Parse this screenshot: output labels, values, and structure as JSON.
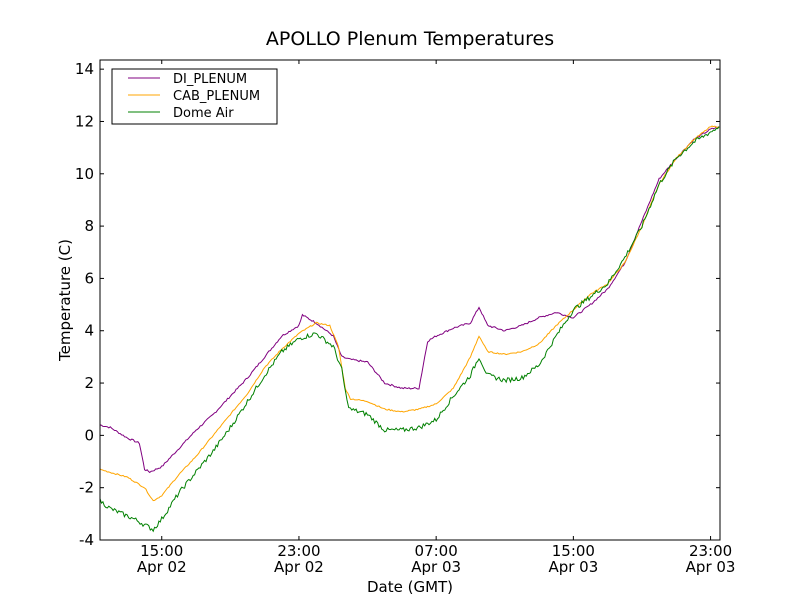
{
  "chart_data": {
    "type": "line",
    "title": "APOLLO Plenum Temperatures",
    "xlabel": "Date (GMT)",
    "ylabel": "Temperature (C)",
    "x_unit": "hours since Apr 02 00:00 GMT",
    "xlim": [
      11.4,
      47.55
    ],
    "ylim": [
      -4,
      14.35
    ],
    "yticks": [
      -4,
      -2,
      0,
      2,
      4,
      6,
      8,
      10,
      12,
      14
    ],
    "xticks": [
      {
        "value": 15,
        "time": "15:00",
        "date": "Apr 02"
      },
      {
        "value": 23,
        "time": "23:00",
        "date": "Apr 02"
      },
      {
        "value": 31,
        "time": "07:00",
        "date": "Apr 03"
      },
      {
        "value": 39,
        "time": "15:00",
        "date": "Apr 03"
      },
      {
        "value": 47,
        "time": "23:00",
        "date": "Apr 03"
      }
    ],
    "legend_position": "top-left",
    "grid": false,
    "series": [
      {
        "name": "DI_PLENUM",
        "color": "#800080",
        "x": [
          11.4,
          12,
          13,
          13.7,
          14,
          14.3,
          15,
          16,
          17,
          18,
          19,
          20,
          21,
          22,
          23,
          23.2,
          24,
          25,
          25.5,
          26,
          27,
          28,
          29,
          30,
          30.5,
          31,
          32,
          33,
          33.5,
          34,
          35,
          36,
          37,
          38,
          39,
          40,
          41,
          42,
          43,
          44,
          45,
          46,
          47,
          47.5
        ],
        "y": [
          0.4,
          0.3,
          -0.1,
          -0.3,
          -1.3,
          -1.4,
          -1.2,
          -0.5,
          0.2,
          0.8,
          1.5,
          2.2,
          3.0,
          3.8,
          4.2,
          4.6,
          4.3,
          3.8,
          3.0,
          2.9,
          2.8,
          2.0,
          1.8,
          1.8,
          3.6,
          3.8,
          4.1,
          4.3,
          4.9,
          4.2,
          4.0,
          4.2,
          4.5,
          4.7,
          4.5,
          5.0,
          5.6,
          6.6,
          8.2,
          9.8,
          10.6,
          11.3,
          11.7,
          11.8
        ]
      },
      {
        "name": "CAB_PLENUM",
        "color": "#ffa500",
        "x": [
          11.4,
          13,
          14,
          14.5,
          15,
          16,
          17,
          18,
          19,
          20,
          21,
          22,
          23,
          24,
          24.8,
          25.3,
          25.7,
          26,
          27,
          28,
          29,
          30,
          31,
          32,
          33,
          33.5,
          34,
          35,
          36,
          37,
          38,
          39,
          40,
          41,
          42,
          43,
          44,
          45,
          46,
          47,
          47.5
        ],
        "y": [
          -1.3,
          -1.6,
          -2.0,
          -2.5,
          -2.3,
          -1.5,
          -0.8,
          0.0,
          0.8,
          1.6,
          2.6,
          3.3,
          3.9,
          4.3,
          4.2,
          3.4,
          1.8,
          1.4,
          1.3,
          1.0,
          0.9,
          1.0,
          1.2,
          1.8,
          3.0,
          3.8,
          3.2,
          3.1,
          3.2,
          3.5,
          4.2,
          4.8,
          5.4,
          5.8,
          6.6,
          8.0,
          9.6,
          10.6,
          11.3,
          11.8,
          11.8
        ]
      },
      {
        "name": "Dome Air",
        "color": "#008000",
        "x": [
          11.4,
          12,
          13.4,
          14.5,
          15,
          16,
          17,
          18,
          19,
          20,
          21,
          22,
          23,
          24,
          25,
          25.5,
          25.8,
          26,
          27,
          28,
          29,
          30,
          31,
          32,
          33,
          33.5,
          34,
          35,
          36,
          37,
          38,
          39,
          40,
          41,
          42,
          43,
          44,
          45,
          46,
          47,
          47.5
        ],
        "y": [
          -2.5,
          -2.8,
          -3.2,
          -3.6,
          -3.2,
          -2.2,
          -1.4,
          -0.6,
          0.3,
          1.3,
          2.3,
          3.2,
          3.7,
          3.9,
          3.4,
          2.5,
          1.3,
          1.0,
          0.8,
          0.2,
          0.2,
          0.3,
          0.6,
          1.5,
          2.3,
          3.0,
          2.3,
          2.1,
          2.2,
          2.7,
          3.8,
          4.8,
          5.3,
          5.8,
          6.8,
          8.0,
          9.6,
          10.6,
          11.2,
          11.6,
          11.8
        ]
      }
    ]
  }
}
